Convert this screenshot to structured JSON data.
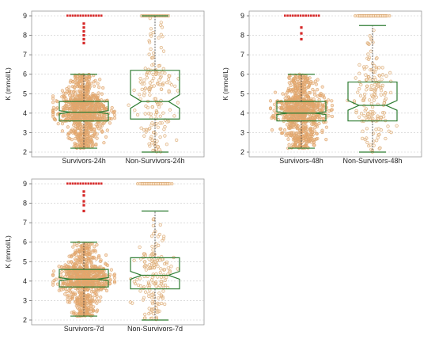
{
  "colors": {
    "box": "#2e7d32",
    "dot_outline": "#d9a873",
    "dot_fill_dense": "#f4a261",
    "outlier": "#d62828",
    "grid": "#c8c8c8"
  },
  "chart_data": [
    {
      "type": "box",
      "ylabel": "K (mmol/L)",
      "ylim": [
        2,
        9
      ],
      "yticks": [
        "2",
        "3",
        "4",
        "5",
        "6",
        "7",
        "8",
        "9"
      ],
      "grid": "horizontal dotted",
      "categories": [
        "Survivors-24h",
        "Non-Survivors-24h"
      ],
      "boxes": [
        {
          "category": "Survivors-24h",
          "min": 2.2,
          "q1": 3.6,
          "median": 4.05,
          "q3": 4.6,
          "max": 6.0,
          "notch": [
            3.97,
            4.13
          ],
          "outliers": [
            7.6,
            7.8,
            8.0,
            8.2,
            8.4,
            8.6,
            9.0
          ]
        },
        {
          "category": "Non-Survivors-24h",
          "min": 2.0,
          "q1": 3.7,
          "median": 4.6,
          "q3": 6.2,
          "max": 9.0,
          "notch": [
            4.25,
            4.95
          ],
          "outliers": []
        }
      ]
    },
    {
      "type": "box",
      "ylabel": "K (mmol/L)",
      "ylim": [
        2,
        9
      ],
      "yticks": [
        "2",
        "3",
        "4",
        "5",
        "6",
        "7",
        "8",
        "9"
      ],
      "grid": "horizontal dotted",
      "categories": [
        "Survivors-48h",
        "Non-Survivors-48h"
      ],
      "boxes": [
        {
          "category": "Survivors-48h",
          "min": 2.2,
          "q1": 3.6,
          "median": 4.0,
          "q3": 4.6,
          "max": 6.0,
          "notch": [
            3.93,
            4.07
          ],
          "outliers": [
            7.8,
            8.1,
            8.4,
            9.0
          ]
        },
        {
          "category": "Non-Survivors-48h",
          "min": 2.0,
          "q1": 3.6,
          "median": 4.4,
          "q3": 5.6,
          "max": 8.5,
          "notch": [
            4.15,
            4.65
          ],
          "outliers": [
            9.0
          ]
        }
      ]
    },
    {
      "type": "box",
      "ylabel": "K (mmol/L)",
      "ylim": [
        2,
        9
      ],
      "yticks": [
        "2",
        "3",
        "4",
        "5",
        "6",
        "7",
        "8",
        "9"
      ],
      "grid": "horizontal dotted",
      "categories": [
        "Survivors-7d",
        "Non-Survivors-7d"
      ],
      "boxes": [
        {
          "category": "Survivors-7d",
          "min": 2.2,
          "q1": 3.7,
          "median": 4.1,
          "q3": 4.6,
          "max": 6.0,
          "notch": [
            4.02,
            4.18
          ],
          "outliers": [
            7.6,
            7.9,
            8.1,
            8.4,
            8.6,
            9.0
          ]
        },
        {
          "category": "Non-Survivors-7d",
          "min": 2.0,
          "q1": 3.6,
          "median": 4.3,
          "q3": 5.2,
          "max": 7.6,
          "notch": [
            4.1,
            4.5
          ],
          "outliers": [
            9.0
          ]
        }
      ]
    }
  ]
}
